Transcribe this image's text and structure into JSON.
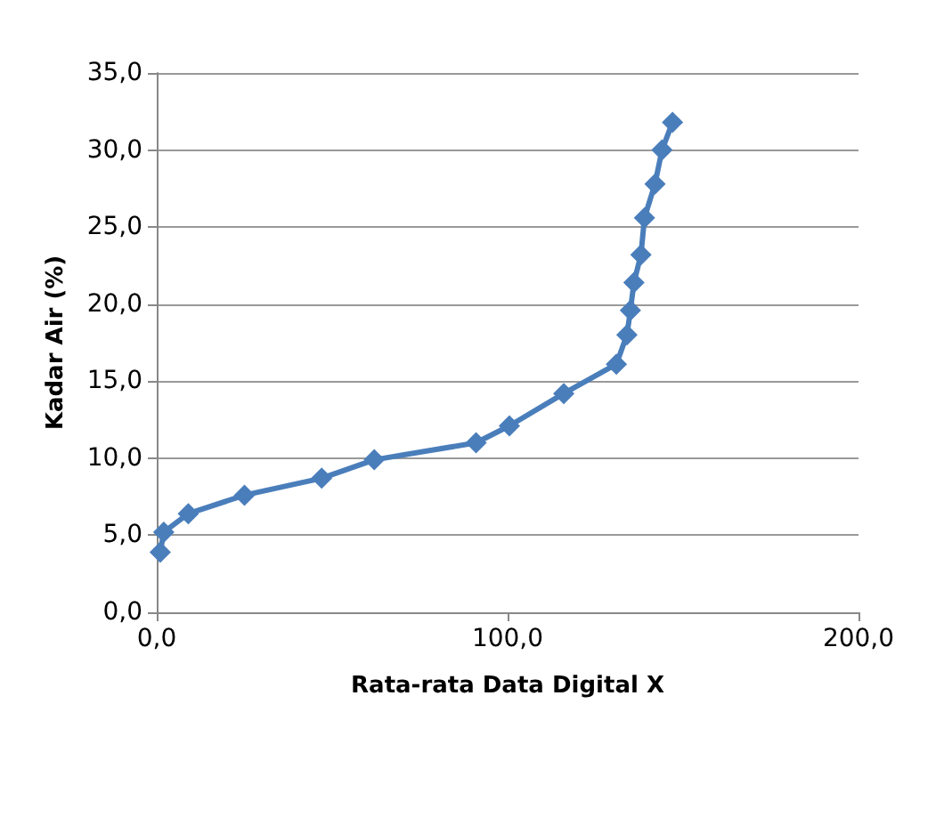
{
  "chart_data": {
    "type": "line",
    "xlabel": "Rata-rata Data Digital X",
    "ylabel": "Kadar Air (%)",
    "series": [
      {
        "color": "#4a7ebb",
        "x": [
          1,
          2,
          9,
          25,
          47,
          62,
          91,
          100.5,
          116,
          131,
          134,
          135,
          136,
          138,
          139,
          142,
          144,
          147
        ],
        "values": [
          3.9,
          5.2,
          6.4,
          7.6,
          8.7,
          9.9,
          11.0,
          12.1,
          14.2,
          16.1,
          18.0,
          19.6,
          21.4,
          23.2,
          25.6,
          27.8,
          30.0,
          31.8
        ]
      }
    ],
    "xlim": [
      0,
      200
    ],
    "xticks": [
      {
        "value": 0,
        "label": "0,0"
      },
      {
        "value": 100,
        "label": "100,0"
      },
      {
        "value": 200,
        "label": "200,0"
      }
    ],
    "ylim": [
      0,
      35
    ],
    "yticks": [
      {
        "value": 0,
        "label": "0,0"
      },
      {
        "value": 5,
        "label": "5,0"
      },
      {
        "value": 10,
        "label": "10,0"
      },
      {
        "value": 15,
        "label": "15,0"
      },
      {
        "value": 20,
        "label": "20,0"
      },
      {
        "value": 25,
        "label": "25,0"
      },
      {
        "value": 30,
        "label": "30,0"
      },
      {
        "value": 35,
        "label": "35,0"
      }
    ],
    "grid": "y",
    "marker": "diamond",
    "line_style": "solid"
  }
}
